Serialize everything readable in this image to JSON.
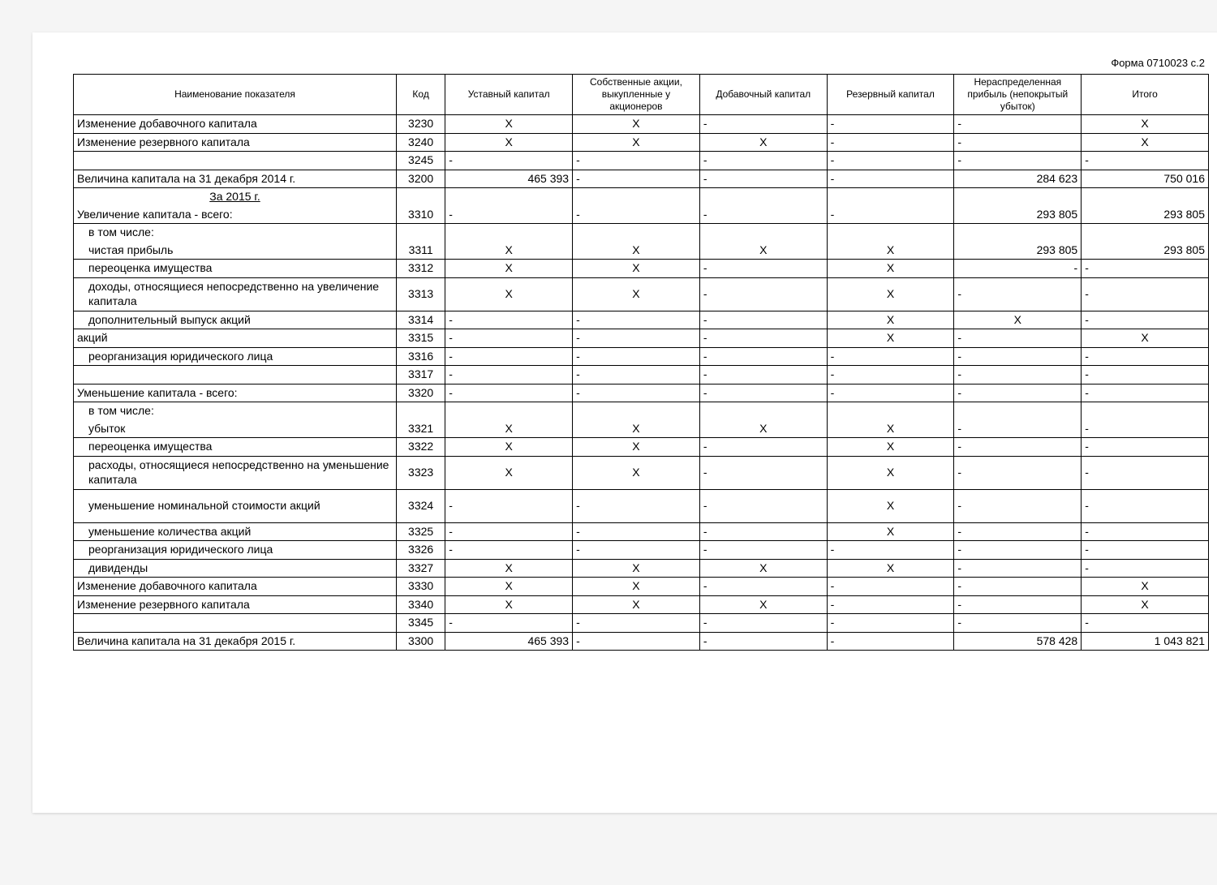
{
  "form_code": "Форма 0710023 с.2",
  "columns": {
    "name": "Наименование показателя",
    "code": "Код",
    "c1": "Уставный капитал",
    "c2": "Собственные акции, выкупленные у акционеров",
    "c3": "Добавочный капитал",
    "c4": "Резервный капитал",
    "c5": "Нераспределенная прибыль (непокрытый убыток)",
    "c6": "Итого"
  },
  "rows": [
    {
      "name": "Изменение добавочного капитала",
      "code": "3230",
      "c1": "X",
      "c2": "X",
      "c3": "-",
      "c4": "-",
      "c5": "-",
      "c6": "X",
      "indent": 0
    },
    {
      "name": "Изменение резервного капитала",
      "code": "3240",
      "c1": "X",
      "c2": "X",
      "c3": "X",
      "c4": "-",
      "c5": "-",
      "c6": "X",
      "indent": 0
    },
    {
      "name": "",
      "code": "3245",
      "c1": "-",
      "c2": "-",
      "c3": "-",
      "c4": "-",
      "c5": "-",
      "c6": "-",
      "indent": 0
    },
    {
      "name": "Величина капитала на 31 декабря 2014 г.",
      "code": "3200",
      "c1": "465 393",
      "c1a": "right",
      "c2": "-",
      "c3": "-",
      "c4": "-",
      "c5": "284 623",
      "c5a": "right",
      "c6": "750 016",
      "c6a": "right",
      "indent": 0
    },
    {
      "section": "За 2015 г."
    },
    {
      "name": "Увеличение капитала - всего:",
      "code": "3310",
      "c1": "-",
      "c2": "-",
      "c3": "-",
      "c4": "-",
      "c5": "293 805",
      "c5a": "right",
      "c6": "293 805",
      "c6a": "right",
      "indent": 0
    },
    {
      "name": "в том числе:",
      "indent": 1,
      "textonly": true
    },
    {
      "name": "чистая прибыль",
      "code": "3311",
      "c1": "X",
      "c2": "X",
      "c3": "X",
      "c4": "X",
      "c5": "293 805",
      "c5a": "right",
      "c6": "293 805",
      "c6a": "right",
      "indent": 1,
      "continue": true
    },
    {
      "name": "переоценка имущества",
      "code": "3312",
      "c1": "X",
      "c2": "X",
      "c3": "-",
      "c4": "X",
      "c5": "-",
      "c5a": "right",
      "c6": "-",
      "indent": 1
    },
    {
      "name": "доходы, относящиеся непосредственно на увеличение капитала",
      "code": "3313",
      "c1": "X",
      "c2": "X",
      "c3": "-",
      "c4": "X",
      "c5": "-",
      "c6": "-",
      "indent": 1,
      "tall": true
    },
    {
      "name": "дополнительный выпуск акций",
      "code": "3314",
      "c1": "-",
      "c2": "-",
      "c3": "-",
      "c4": "X",
      "c5": "X",
      "c6": "-",
      "indent": 1
    },
    {
      "name": "акций",
      "code": "3315",
      "c1": "-",
      "c2": "-",
      "c3": "-",
      "c4": "X",
      "c5": "-",
      "c6": "X",
      "indent": 0
    },
    {
      "name": "реорганизация юридического лица",
      "code": "3316",
      "c1": "-",
      "c2": "-",
      "c3": "-",
      "c4": "-",
      "c5": "-",
      "c6": "-",
      "indent": 1
    },
    {
      "name": "",
      "code": "3317",
      "c1": "-",
      "c2": "-",
      "c3": "-",
      "c4": "-",
      "c5": "-",
      "c6": "-",
      "indent": 0
    },
    {
      "name": "Уменьшение капитала - всего:",
      "code": "3320",
      "c1": "-",
      "c2": "-",
      "c3": "-",
      "c4": "-",
      "c5": "-",
      "c6": "-",
      "indent": 0
    },
    {
      "name": "в том числе:",
      "indent": 1,
      "textonly": true
    },
    {
      "name": "убыток",
      "code": "3321",
      "c1": "X",
      "c2": "X",
      "c3": "X",
      "c4": "X",
      "c5": "-",
      "c6": "-",
      "indent": 1,
      "continue": true
    },
    {
      "name": "переоценка имущества",
      "code": "3322",
      "c1": "X",
      "c2": "X",
      "c3": "-",
      "c4": "X",
      "c5": "-",
      "c6": "-",
      "indent": 1
    },
    {
      "name": "расходы, относящиеся непосредственно на уменьшение капитала",
      "code": "3323",
      "c1": "X",
      "c2": "X",
      "c3": "-",
      "c4": "X",
      "c5": "-",
      "c6": "-",
      "indent": 1,
      "tall": true
    },
    {
      "name": "уменьшение номинальной стоимости акций",
      "code": "3324",
      "c1": "-",
      "c2": "-",
      "c3": "-",
      "c4": "X",
      "c5": "-",
      "c6": "-",
      "indent": 1,
      "tall": true
    },
    {
      "name": "уменьшение количества акций",
      "code": "3325",
      "c1": "-",
      "c2": "-",
      "c3": "-",
      "c4": "X",
      "c5": "-",
      "c6": "-",
      "indent": 1
    },
    {
      "name": "реорганизация юридического лица",
      "code": "3326",
      "c1": "-",
      "c2": "-",
      "c3": "-",
      "c4": "-",
      "c5": "-",
      "c6": "-",
      "indent": 1
    },
    {
      "name": "дивиденды",
      "code": "3327",
      "c1": "X",
      "c2": "X",
      "c3": "X",
      "c4": "X",
      "c5": "-",
      "c6": "-",
      "indent": 1
    },
    {
      "name": "Изменение добавочного капитала",
      "code": "3330",
      "c1": "X",
      "c2": "X",
      "c3": "-",
      "c4": "-",
      "c5": "-",
      "c6": "X",
      "indent": 0
    },
    {
      "name": "Изменение резервного капитала",
      "code": "3340",
      "c1": "X",
      "c2": "X",
      "c3": "X",
      "c4": "-",
      "c5": "-",
      "c6": "X",
      "indent": 0
    },
    {
      "name": "",
      "code": "3345",
      "c1": "-",
      "c2": "-",
      "c3": "-",
      "c4": "-",
      "c5": "-",
      "c6": "-",
      "indent": 0
    },
    {
      "name": "Величина капитала на 31 декабря 2015 г.",
      "code": "3300",
      "c1": "465 393",
      "c1a": "right",
      "c2": "-",
      "c3": "-",
      "c4": "-",
      "c5": "578 428",
      "c5a": "right",
      "c6": "1 043 821",
      "c6a": "right",
      "indent": 0
    }
  ],
  "style": {
    "background_page": "#ffffff",
    "background_body": "#f5f5f5",
    "border_color": "#000000",
    "font_body": "Arial, sans-serif",
    "font_size_header": 12,
    "font_size_cell": 14
  }
}
